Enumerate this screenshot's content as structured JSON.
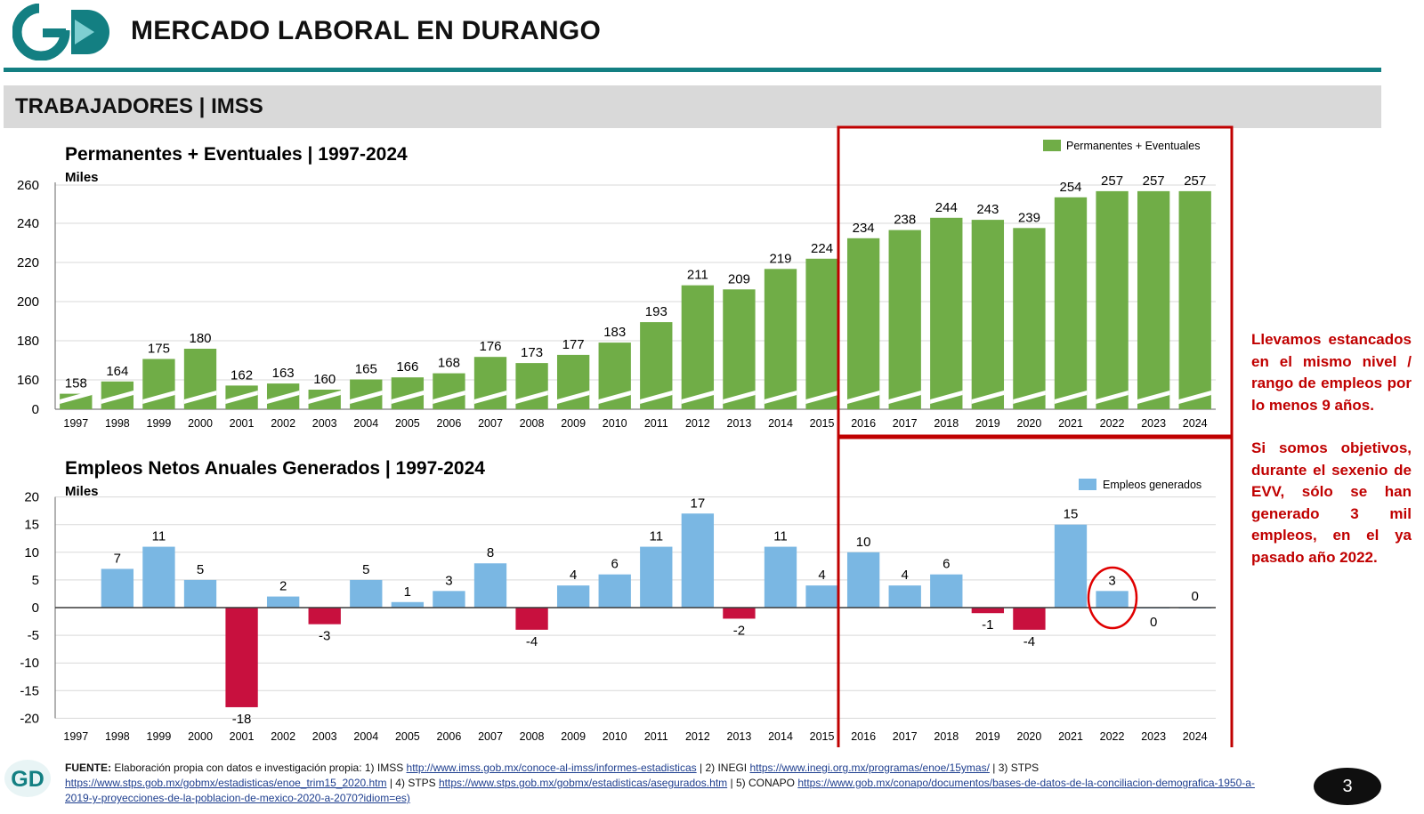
{
  "header": {
    "title": "MERCADO LABORAL EN DURANGO",
    "section": "TRABAJADORES | IMSS",
    "logo_text": "GD"
  },
  "colors": {
    "teal": "#137f82",
    "green": "#70ad47",
    "blue": "#7ab7e3",
    "crimson": "#c8103e",
    "dark_red": "#c00000"
  },
  "chart_data": [
    {
      "type": "bar",
      "title": "Permanentes + Eventuales | 1997-2024",
      "ylabel": "Miles",
      "legend": "Permanentes + Eventuales",
      "legend_position": "top-right",
      "categories": [
        "1997",
        "1998",
        "1999",
        "2000",
        "2001",
        "2002",
        "2003",
        "2004",
        "2005",
        "2006",
        "2007",
        "2008",
        "2009",
        "2010",
        "2011",
        "2012",
        "2013",
        "2014",
        "2015",
        "2016",
        "2017",
        "2018",
        "2019",
        "2020",
        "2021",
        "2022",
        "2023",
        "2024"
      ],
      "values": [
        158,
        164,
        175,
        180,
        162,
        163,
        160,
        165,
        166,
        168,
        176,
        173,
        177,
        183,
        193,
        211,
        209,
        219,
        224,
        234,
        238,
        244,
        243,
        239,
        254,
        257,
        257,
        257
      ],
      "yticks": [
        "0",
        "160",
        "180",
        "200",
        "220",
        "240",
        "260"
      ],
      "axis_break": true,
      "grid": true
    },
    {
      "type": "bar",
      "title": "Empleos Netos Anuales Generados | 1997-2024",
      "ylabel": "Miles",
      "legend": "Empleos generados",
      "legend_position": "top-right",
      "categories": [
        "1997",
        "1998",
        "1999",
        "2000",
        "2001",
        "2002",
        "2003",
        "2004",
        "2005",
        "2006",
        "2007",
        "2008",
        "2009",
        "2010",
        "2011",
        "2012",
        "2013",
        "2014",
        "2015",
        "2016",
        "2017",
        "2018",
        "2019",
        "2020",
        "2021",
        "2022",
        "2023",
        "2024"
      ],
      "values": [
        null,
        7,
        11,
        5,
        -18,
        2,
        -3,
        5,
        1,
        3,
        8,
        -4,
        4,
        6,
        11,
        17,
        -2,
        11,
        4,
        10,
        4,
        6,
        -1,
        -4,
        15,
        3,
        0,
        0
      ],
      "labels": [
        "",
        "7",
        "11",
        "5",
        "-18",
        "2",
        "-3",
        "5",
        "1",
        "3",
        "8",
        "-4",
        "4",
        "6",
        "11",
        "17",
        "-2",
        "11",
        "4",
        "10",
        "4",
        "6",
        "-1",
        "-4",
        "15",
        "3",
        "0",
        "0"
      ],
      "ylim": [
        -20,
        20
      ],
      "yticks": [
        "-20",
        "-15",
        "-10",
        "-5",
        "0",
        "5",
        "10",
        "15",
        "20"
      ],
      "grid": true,
      "highlight_year": "2022"
    }
  ],
  "note": {
    "p1": "Llevamos estancados en el mismo nivel / rango de empleos por lo menos 9 años.",
    "p2": "Si somos objetivos, durante el sexenio de EVV, sólo se han generado 3 mil empleos, en el ya pasado año 2022."
  },
  "source": {
    "label": "FUENTE:",
    "t1": "Elaboración propia con datos e investigación propia: 1) IMSS",
    "l1": "http://www.imss.gob.mx/conoce-al-imss/informes-estadisticas",
    "t2": "| 2) INEGI",
    "l2": "https://www.inegi.org.mx/programas/enoe/15ymas/",
    "t3": "| 3) STPS",
    "l3": "https://www.stps.gob.mx/gobmx/estadisticas/enoe_trim15_2020.htm",
    "t4": "| 4) STPS",
    "l4": "https://www.stps.gob.mx/gobmx/estadisticas/asegurados.htm",
    "t5": "| 5) CONAPO",
    "l5": "https://www.gob.mx/conapo/documentos/bases-de-datos-de-la-conciliacion-demografica-1950-a-2019-y-proyecciones-de-la-poblacion-de-mexico-2020-a-2070?idiom=es)"
  },
  "page_number": "3"
}
